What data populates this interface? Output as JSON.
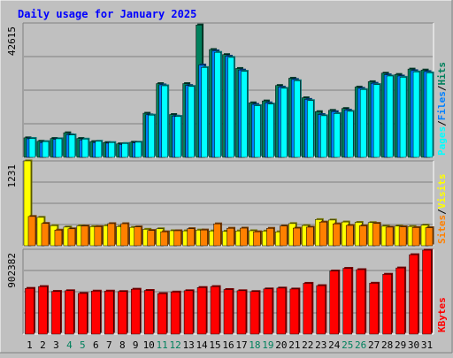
{
  "chart_data": [
    {
      "type": "bar",
      "title": "Daily usage for January 2025",
      "categories": [
        "1",
        "2",
        "3",
        "4",
        "5",
        "6",
        "7",
        "8",
        "9",
        "10",
        "11",
        "12",
        "13",
        "14",
        "15",
        "16",
        "17",
        "18",
        "19",
        "20",
        "21",
        "22",
        "23",
        "24",
        "25",
        "26",
        "27",
        "28",
        "29",
        "30",
        "31"
      ],
      "weekend_days": [
        "4",
        "5",
        "11",
        "12",
        "18",
        "19",
        "25",
        "26"
      ],
      "ytick": "42615",
      "ylim": [
        0,
        42615
      ],
      "legend": [
        "Pages",
        "Files",
        "Hits"
      ],
      "legend_separator": "/",
      "series": [
        {
          "name": "Hits",
          "color": "#00805c",
          "values": [
            6200,
            5100,
            6000,
            7800,
            6000,
            5000,
            4700,
            4300,
            4800,
            14000,
            23400,
            13600,
            23400,
            42000,
            34200,
            32600,
            28200,
            17300,
            17900,
            22800,
            25100,
            18900,
            14500,
            14900,
            15500,
            22300,
            24000,
            26700,
            26300,
            28000,
            27700
          ]
        },
        {
          "name": "Files",
          "color": "#0080ff",
          "values": [
            5900,
            4700,
            5700,
            7200,
            5500,
            4700,
            4500,
            4100,
            4600,
            13500,
            23000,
            13100,
            22800,
            29300,
            33800,
            32100,
            27700,
            16800,
            17300,
            22300,
            24700,
            18400,
            13600,
            14500,
            15000,
            21900,
            23500,
            26200,
            25800,
            27500,
            27200
          ]
        },
        {
          "name": "Pages",
          "color": "#00ffff",
          "values": [
            6000,
            5000,
            5900,
            7100,
            5800,
            5100,
            4700,
            4400,
            4800,
            13400,
            22700,
            13000,
            22500,
            28500,
            33300,
            31700,
            27300,
            16400,
            16900,
            21900,
            24300,
            18000,
            13200,
            13900,
            14600,
            21500,
            23100,
            25800,
            25400,
            27100,
            26800
          ]
        }
      ]
    },
    {
      "type": "bar",
      "categories": [
        "1",
        "2",
        "3",
        "4",
        "5",
        "6",
        "7",
        "8",
        "9",
        "10",
        "11",
        "12",
        "13",
        "14",
        "15",
        "16",
        "17",
        "18",
        "19",
        "20",
        "21",
        "22",
        "23",
        "24",
        "25",
        "26",
        "27",
        "28",
        "29",
        "30",
        "31"
      ],
      "ytick": "1231",
      "ylim": [
        0,
        1231
      ],
      "legend": [
        "Sites",
        "Visits"
      ],
      "legend_separator": "/",
      "series": [
        {
          "name": "Visits",
          "color": "#ffff00",
          "values": [
            1231,
            412,
            292,
            271,
            289,
            278,
            292,
            279,
            267,
            239,
            246,
            218,
            216,
            228,
            215,
            210,
            215,
            218,
            213,
            202,
            322,
            294,
            380,
            373,
            345,
            340,
            336,
            284,
            285,
            280,
            299
          ]
        },
        {
          "name": "Sites",
          "color": "#ff8000",
          "values": [
            425,
            324,
            227,
            246,
            285,
            277,
            321,
            320,
            273,
            222,
            203,
            218,
            248,
            229,
            318,
            254,
            256,
            203,
            253,
            287,
            256,
            270,
            344,
            318,
            295,
            289,
            325,
            270,
            275,
            265,
            262
          ]
        }
      ]
    },
    {
      "type": "bar",
      "categories": [
        "1",
        "2",
        "3",
        "4",
        "5",
        "6",
        "7",
        "8",
        "9",
        "10",
        "11",
        "12",
        "13",
        "14",
        "15",
        "16",
        "17",
        "18",
        "19",
        "20",
        "21",
        "22",
        "23",
        "24",
        "25",
        "26",
        "27",
        "28",
        "29",
        "30",
        "31"
      ],
      "ytick": "902382",
      "ylim": [
        0,
        902382
      ],
      "legend": [
        "KBytes"
      ],
      "series": [
        {
          "name": "KBytes",
          "color": "#ff0000",
          "values": [
            487000,
            506000,
            455000,
            462000,
            433000,
            458000,
            458000,
            453000,
            478000,
            465000,
            431000,
            448000,
            462000,
            496000,
            506000,
            475000,
            462000,
            453000,
            481000,
            490000,
            480000,
            541000,
            516000,
            672000,
            700000,
            686000,
            542000,
            637000,
            704000,
            845000,
            893000
          ]
        }
      ]
    }
  ]
}
